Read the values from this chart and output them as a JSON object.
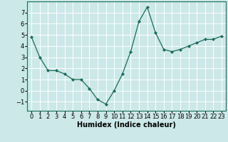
{
  "x": [
    0,
    1,
    2,
    3,
    4,
    5,
    6,
    7,
    8,
    9,
    10,
    11,
    12,
    13,
    14,
    15,
    16,
    17,
    18,
    19,
    20,
    21,
    22,
    23
  ],
  "y": [
    4.8,
    3.0,
    1.8,
    1.8,
    1.5,
    1.0,
    1.0,
    0.2,
    -0.8,
    -1.2,
    0.0,
    1.5,
    3.5,
    6.2,
    7.5,
    5.2,
    3.7,
    3.5,
    3.7,
    4.0,
    4.3,
    4.6,
    4.6,
    4.9
  ],
  "line_color": "#1a6b5a",
  "marker_color": "#1a6b5a",
  "bg_color": "#cce8e8",
  "grid_color": "#ffffff",
  "xlabel": "Humidex (Indice chaleur)",
  "xlabel_fontsize": 7,
  "tick_fontsize": 6,
  "ylim": [
    -1.8,
    8.0
  ],
  "xlim": [
    -0.5,
    23.5
  ],
  "yticks": [
    -1,
    0,
    1,
    2,
    3,
    4,
    5,
    6,
    7
  ],
  "xtick_labels": [
    "0",
    "1",
    "2",
    "3",
    "4",
    "5",
    "6",
    "7",
    "8",
    "9",
    "10",
    "11",
    "12",
    "13",
    "14",
    "15",
    "16",
    "17",
    "18",
    "19",
    "20",
    "21",
    "22",
    "23"
  ]
}
